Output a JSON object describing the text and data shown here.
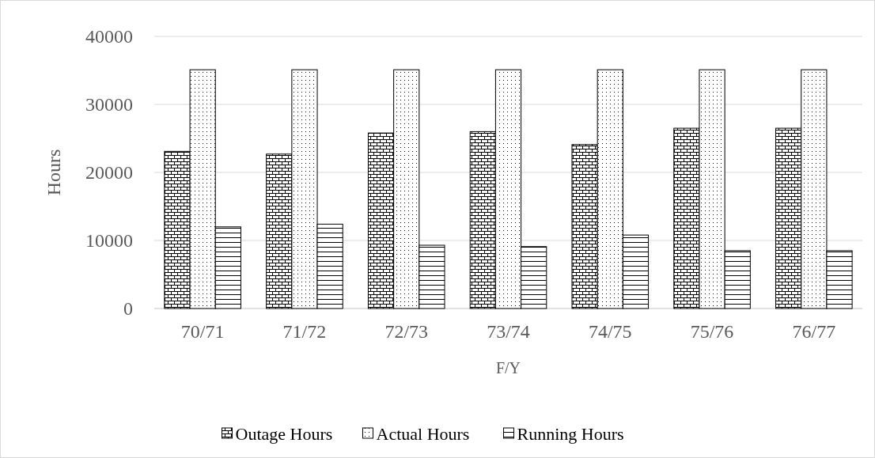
{
  "chart_data": {
    "type": "bar",
    "xlabel": "F/Y",
    "ylabel": "Hours",
    "categories": [
      "70/71",
      "71/72",
      "72/73",
      "73/74",
      "74/75",
      "75/76",
      "76/77"
    ],
    "series": [
      {
        "name": "Outage Hours",
        "color": "#000000",
        "values": [
          23100,
          22700,
          25800,
          26000,
          24100,
          26500,
          26500
        ]
      },
      {
        "name": "Actual Hours",
        "color": "#000000",
        "values": [
          35100,
          35100,
          35100,
          35100,
          35100,
          35100,
          35100
        ]
      },
      {
        "name": "Running Hours",
        "color": "#000000",
        "values": [
          12000,
          12400,
          9300,
          9100,
          10800,
          8500,
          8500
        ]
      }
    ],
    "ylim": [
      0,
      40000
    ],
    "yticks": [
      0,
      10000,
      20000,
      30000,
      40000
    ],
    "grid": "y",
    "legend": "bottom"
  }
}
